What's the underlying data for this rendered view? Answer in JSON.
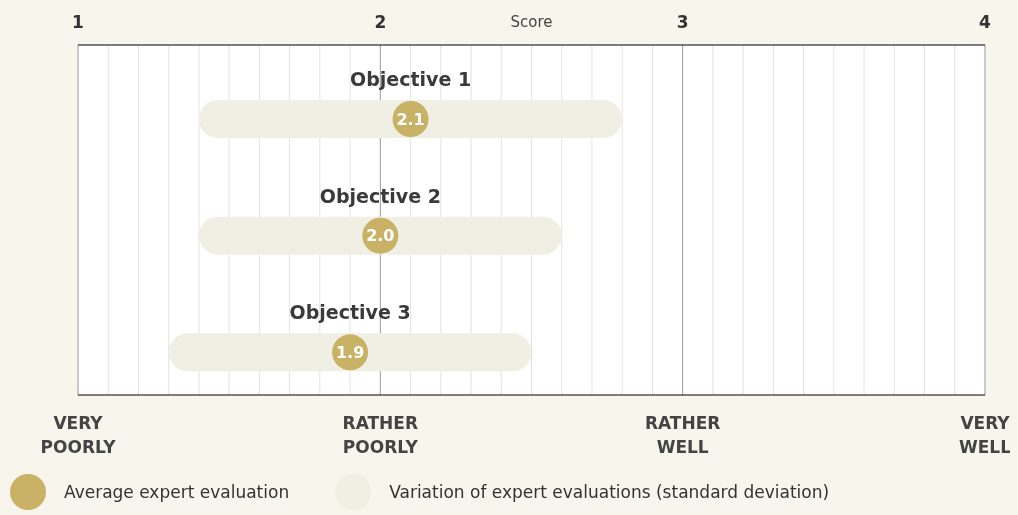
{
  "chart_data": {
    "type": "bar",
    "orientation": "horizontal",
    "categories": [
      "Objective 1",
      "Objective 2",
      "Objective 3"
    ],
    "series": [
      {
        "type": "bar",
        "name": "Variation of expert evaluations (standard deviation)",
        "color": "#f0efe3",
        "base": [
          1.4,
          1.4,
          1.3
        ],
        "values": [
          1.4,
          1.2,
          1.2
        ]
      },
      {
        "type": "scatter",
        "name": "Average expert evaluation",
        "color": "#c9b266",
        "values": [
          2.1,
          2.0,
          1.9
        ],
        "value_labels": [
          "2.1",
          "2.0",
          "1.9"
        ]
      }
    ],
    "xlim": [
      1,
      4
    ],
    "xticks": [
      1,
      {
        "value": 1.1,
        "label": null
      },
      {
        "value": 1.2,
        "label": null
      },
      {
        "value": 1.3,
        "label": null
      },
      {
        "value": 1.4,
        "label": null
      },
      {
        "value": 1.5,
        "label": null
      },
      {
        "value": 1.6,
        "label": null
      },
      {
        "value": 1.7,
        "label": null
      },
      {
        "value": 1.8,
        "label": null
      },
      {
        "value": 1.9,
        "label": null
      },
      2,
      {
        "value": 2.1,
        "label": null
      },
      {
        "value": 2.2,
        "label": null
      },
      {
        "value": 2.3,
        "label": null
      },
      {
        "value": 2.4,
        "label": null
      },
      {
        "value": 2.5,
        "label": null
      },
      {
        "value": 2.6,
        "label": null
      },
      {
        "value": 2.7,
        "label": null
      },
      {
        "value": 2.8,
        "label": null
      },
      {
        "value": 2.9,
        "label": null
      },
      3,
      {
        "value": 3.1,
        "label": null
      },
      {
        "value": 3.2,
        "label": null
      },
      {
        "value": 3.3,
        "label": null
      },
      {
        "value": 3.4,
        "label": null
      },
      {
        "value": 3.5,
        "label": null
      },
      {
        "value": 3.6,
        "label": null
      },
      {
        "value": 3.7,
        "label": null
      },
      {
        "value": 3.8,
        "label": null
      },
      {
        "value": 3.9,
        "label": null
      },
      4
    ],
    "xlabel": "Score",
    "annotations": [
      "VERY POORLY",
      "RATHER POORLY",
      "RATHER WELL",
      "VERY WELL"
    ],
    "grid": "x",
    "legend": "bottom left"
  }
}
